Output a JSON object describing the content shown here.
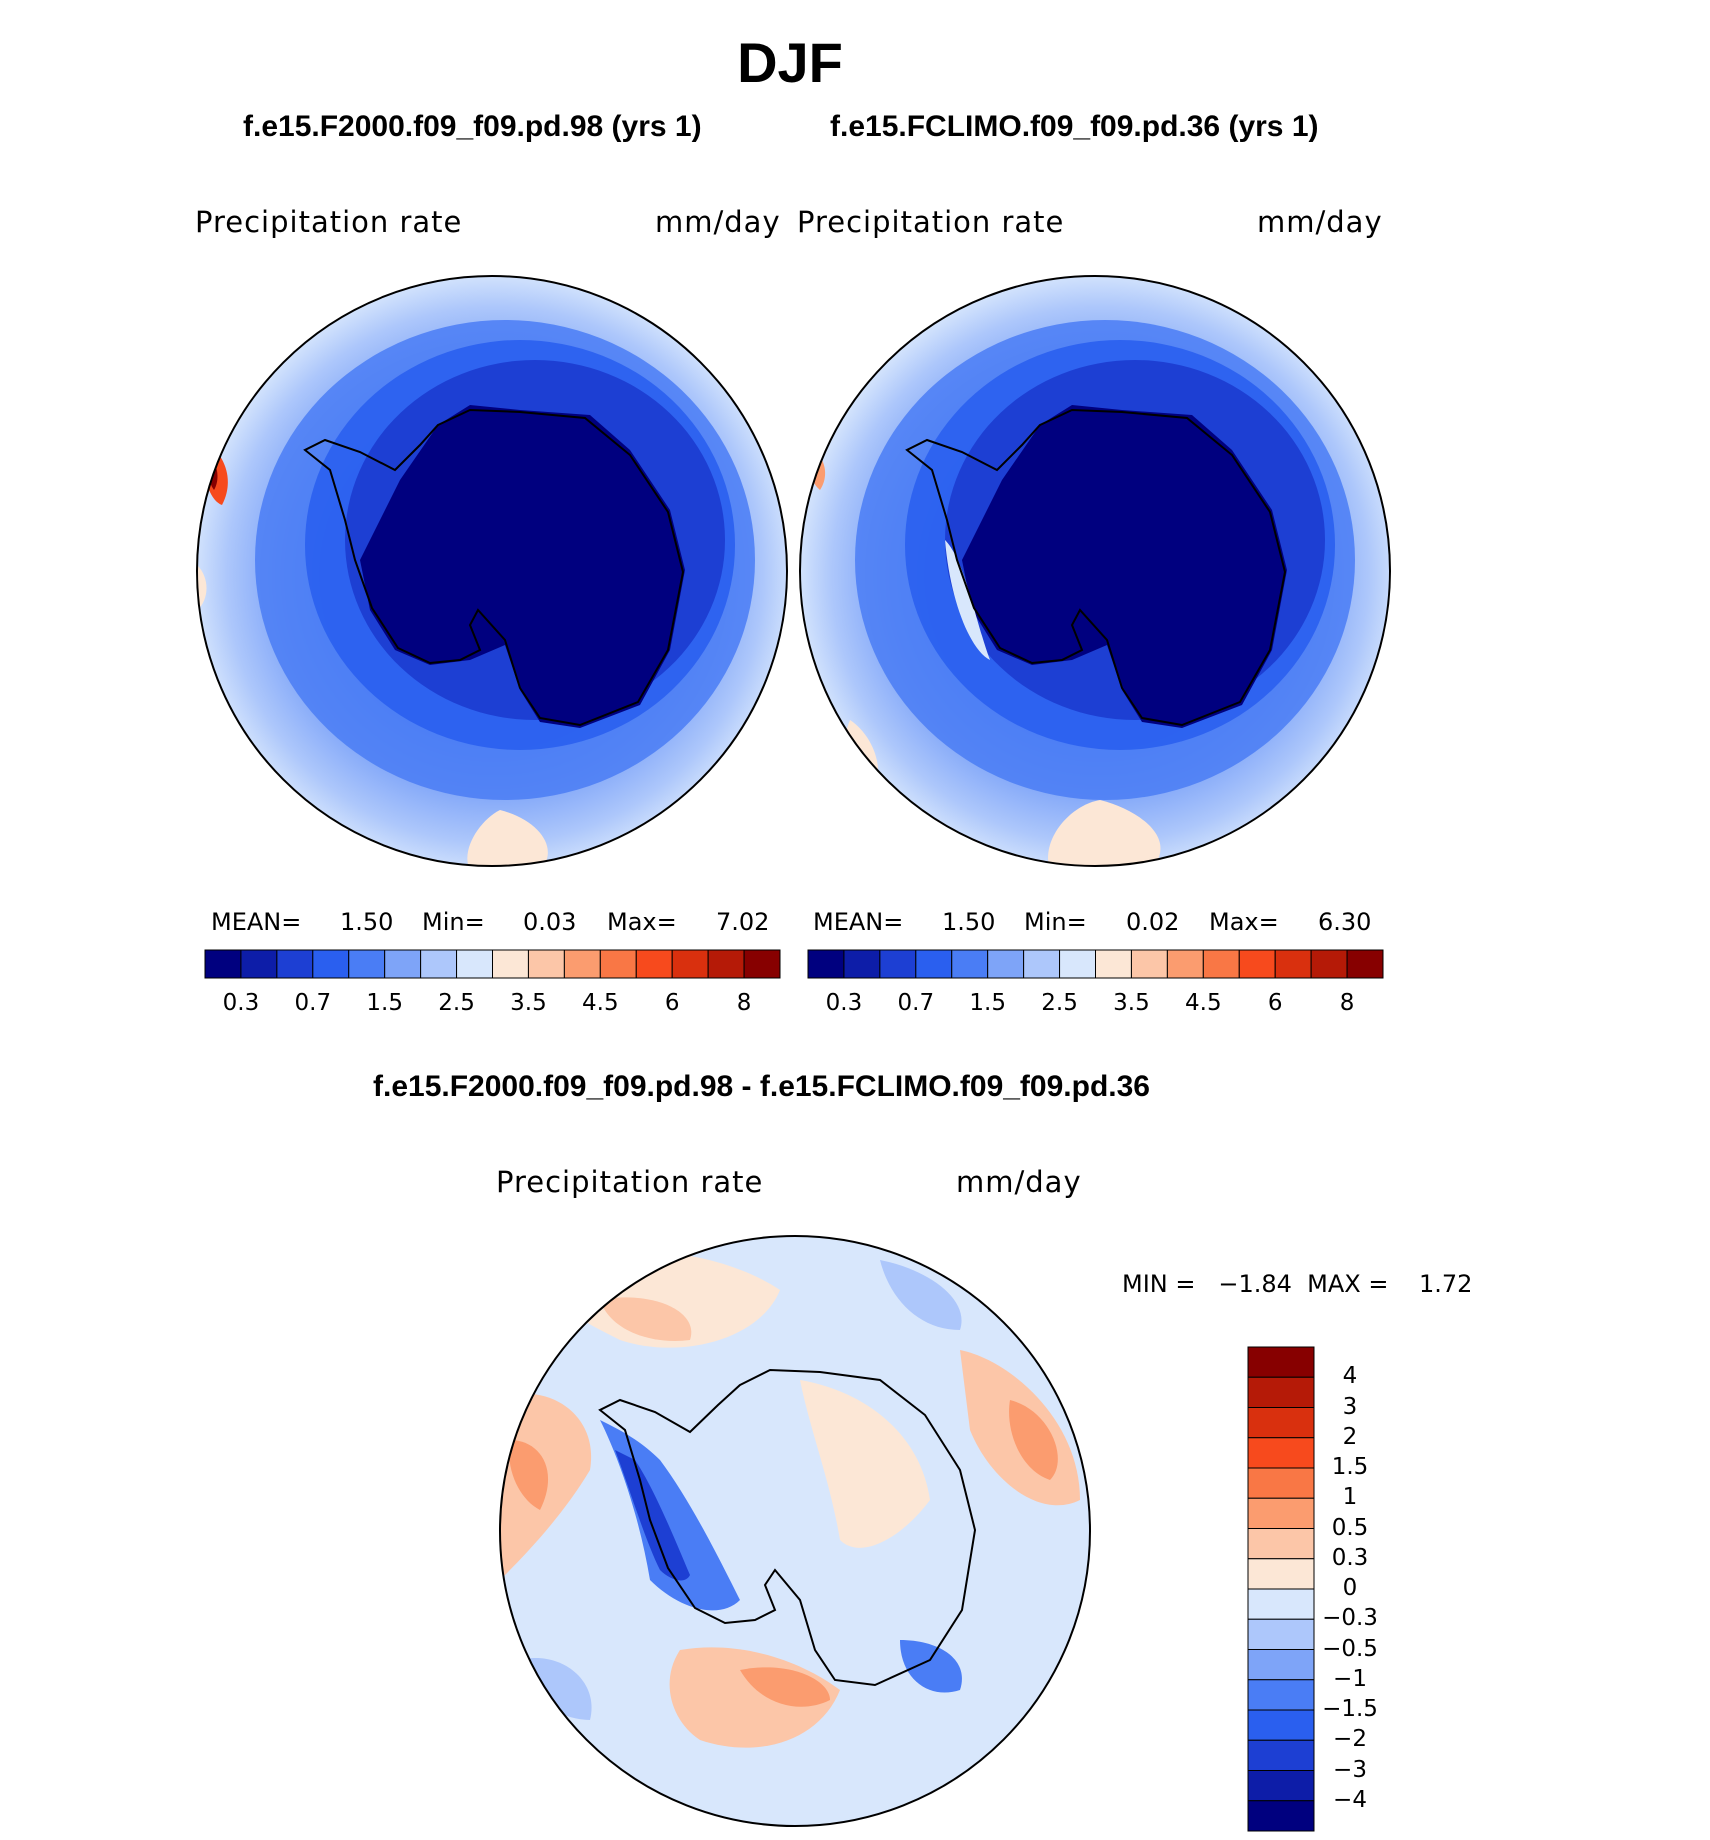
{
  "title": "DJF",
  "panels": {
    "left": {
      "header": "f.e15.F2000.f09_f09.pd.98 (yrs 1)",
      "variable": "Precipitation  rate",
      "units": "mm/day",
      "mean_label": "MEAN=",
      "mean_value": "1.50",
      "min_label": "Min=",
      "min_value": "0.03",
      "max_label": "Max=",
      "max_value": "7.02"
    },
    "right": {
      "header": "f.e15.FCLIMO.f09_f09.pd.36 (yrs 1)",
      "variable": "Precipitation  rate",
      "units": "mm/day",
      "mean_label": "MEAN=",
      "mean_value": "1.50",
      "min_label": "Min=",
      "min_value": "0.02",
      "max_label": "Max=",
      "max_value": "6.30"
    },
    "diff": {
      "header": "f.e15.F2000.f09_f09.pd.98 - f.e15.FCLIMO.f09_f09.pd.36",
      "variable": "Precipitation  rate",
      "units": "mm/day",
      "minmax": "MIN =   −1.84  MAX =    1.72"
    }
  },
  "colorbar_horizontal": {
    "colors": [
      "#00007f",
      "#0d1da8",
      "#1d3fd3",
      "#2a5fef",
      "#4a7df5",
      "#7ea4f8",
      "#adc7fb",
      "#d8e7fc",
      "#fce7d6",
      "#fcc6a8",
      "#fb9c6f",
      "#f97745",
      "#f74a1d",
      "#d9300e",
      "#b51a07",
      "#870000"
    ],
    "tick_labels": [
      "0.3",
      "0.7",
      "1.5",
      "2.5",
      "3.5",
      "4.5",
      "6",
      "8"
    ]
  },
  "colorbar_vertical": {
    "colors": [
      "#870000",
      "#b51a07",
      "#d9300e",
      "#f74a1d",
      "#f97745",
      "#fb9c6f",
      "#fcc6a8",
      "#fce7d6",
      "#d8e7fc",
      "#adc7fb",
      "#7ea4f8",
      "#4a7df5",
      "#2a5fef",
      "#1d3fd3",
      "#0d1da8",
      "#00007f"
    ],
    "tick_labels": [
      "4",
      "3",
      "2",
      "1.5",
      "1",
      "0.5",
      "0.3",
      "0",
      "−0.3",
      "−0.5",
      "−1",
      "−1.5",
      "−2",
      "−3",
      "−4"
    ]
  }
}
